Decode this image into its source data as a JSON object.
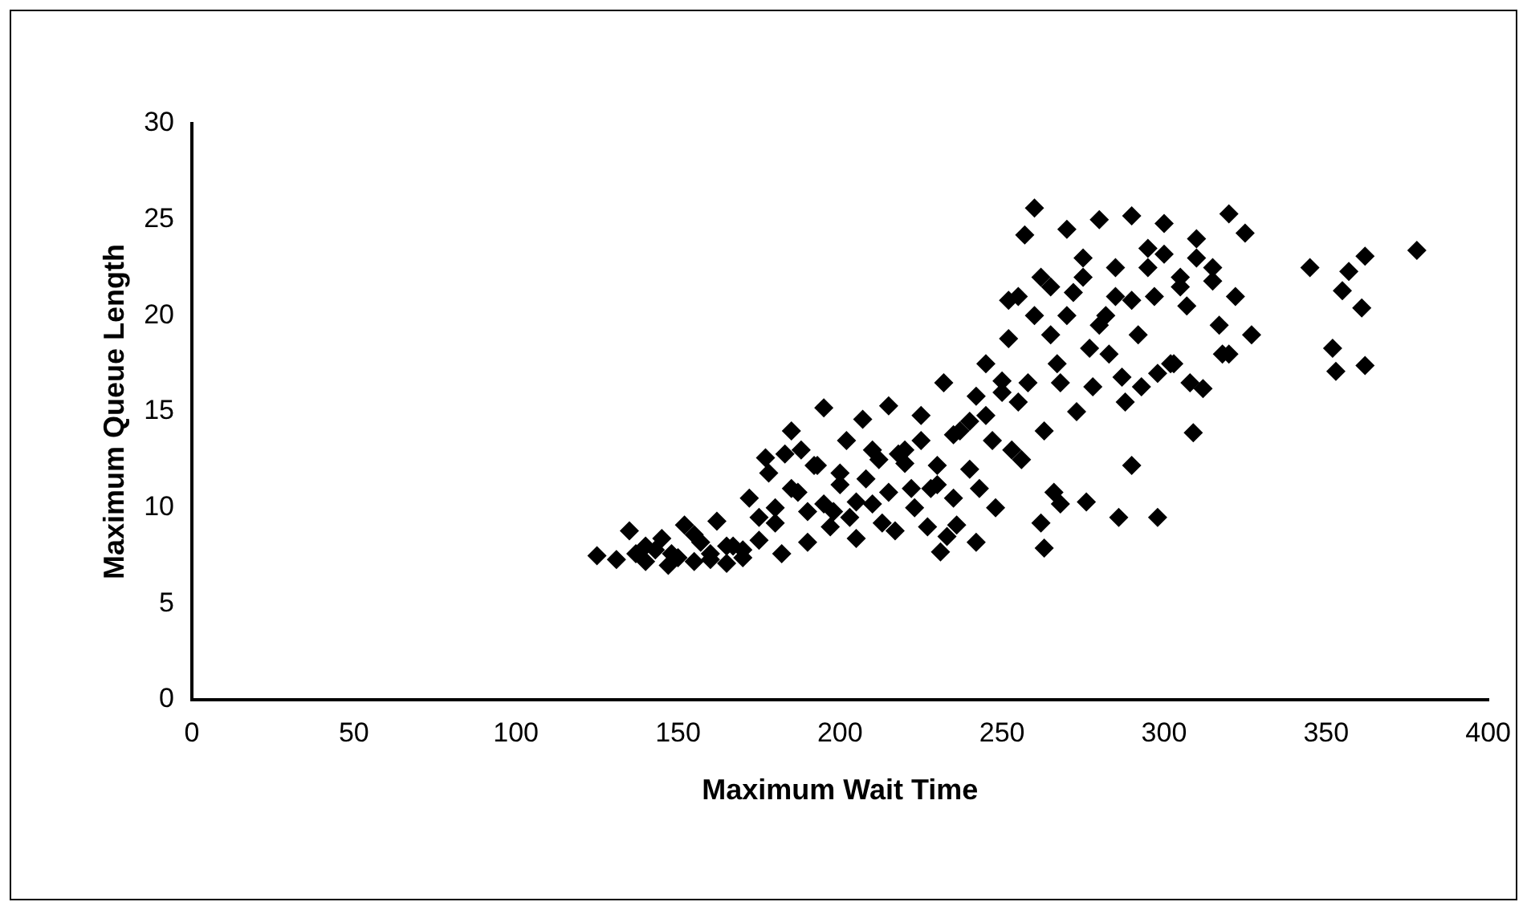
{
  "chart_data": {
    "type": "scatter",
    "xlabel": "Maximum Wait Time",
    "ylabel": "Maximum Queue Length",
    "xlim": [
      0,
      400
    ],
    "ylim": [
      0,
      30
    ],
    "xticks": [
      0,
      50,
      100,
      150,
      200,
      250,
      300,
      350,
      400
    ],
    "yticks": [
      0,
      5,
      10,
      15,
      20,
      25,
      30
    ],
    "marker": "diamond",
    "grid": false,
    "legend": false,
    "series": [
      {
        "color": "#000000",
        "x": [
          125,
          131,
          135,
          137,
          140,
          143,
          145,
          147,
          150,
          152,
          155,
          157,
          160,
          162,
          165,
          167,
          170,
          172,
          175,
          177,
          180,
          182,
          185,
          187,
          190,
          192,
          195,
          197,
          200,
          202,
          205,
          207,
          210,
          212,
          215,
          217,
          220,
          222,
          225,
          227,
          230,
          232,
          235,
          237,
          240,
          242,
          245,
          247,
          250,
          252,
          255,
          257,
          260,
          262,
          265,
          267,
          270,
          272,
          275,
          277,
          280,
          282,
          285,
          287,
          290,
          292,
          295,
          297,
          300,
          302,
          305,
          307,
          310,
          312,
          315,
          317,
          320,
          322,
          325,
          327,
          140,
          148,
          155,
          160,
          165,
          170,
          175,
          180,
          185,
          190,
          195,
          200,
          205,
          210,
          215,
          220,
          225,
          230,
          235,
          240,
          245,
          250,
          255,
          260,
          265,
          270,
          275,
          280,
          285,
          290,
          295,
          300,
          305,
          310,
          315,
          178,
          183,
          188,
          193,
          198,
          203,
          208,
          213,
          218,
          223,
          228,
          233,
          243,
          248,
          253,
          258,
          263,
          268,
          273,
          278,
          283,
          288,
          293,
          298,
          303,
          308,
          318,
          345,
          352,
          355,
          353,
          357,
          362,
          361,
          362,
          378,
          286,
          298,
          263,
          262,
          266,
          268,
          276,
          290,
          309,
          231,
          236,
          242,
          256,
          252,
          320
        ],
        "values": [
          7.5,
          7.3,
          8.8,
          7.6,
          7.2,
          7.8,
          8.4,
          7.0,
          7.4,
          9.1,
          7.2,
          8.2,
          7.6,
          9.3,
          7.1,
          8.0,
          7.4,
          10.5,
          8.3,
          12.6,
          9.2,
          7.6,
          14.0,
          10.8,
          8.2,
          12.2,
          15.2,
          9.0,
          11.2,
          13.5,
          8.4,
          14.6,
          10.2,
          12.5,
          15.3,
          8.8,
          13.0,
          11.0,
          14.8,
          9.0,
          12.2,
          16.5,
          10.5,
          14.0,
          12.0,
          15.8,
          17.5,
          13.5,
          16.0,
          18.8,
          21.0,
          24.2,
          25.6,
          22.0,
          19.0,
          17.5,
          24.5,
          21.2,
          23.0,
          18.3,
          25.0,
          20.0,
          22.5,
          16.8,
          25.2,
          19.0,
          23.5,
          21.0,
          24.8,
          17.5,
          22.0,
          20.5,
          24.0,
          16.2,
          22.5,
          19.5,
          25.3,
          21.0,
          24.3,
          19.0,
          8.0,
          7.6,
          8.6,
          7.3,
          8.0,
          7.8,
          9.5,
          10.0,
          11.0,
          9.8,
          10.2,
          11.8,
          10.3,
          13.0,
          10.8,
          12.3,
          13.5,
          11.2,
          13.8,
          14.5,
          14.8,
          16.6,
          15.5,
          20.0,
          21.5,
          20.0,
          22.0,
          19.5,
          21.0,
          20.8,
          22.5,
          23.2,
          21.5,
          23.0,
          21.8,
          11.8,
          12.8,
          13.0,
          12.2,
          9.8,
          9.5,
          11.5,
          9.2,
          12.8,
          10.0,
          11.0,
          8.5,
          11.0,
          10.0,
          13.0,
          16.5,
          14.0,
          16.5,
          15.0,
          16.3,
          18.0,
          15.5,
          16.3,
          17.0,
          17.5,
          16.5,
          18.0,
          22.5,
          18.3,
          21.3,
          17.1,
          22.3,
          23.1,
          20.4,
          17.4,
          23.4,
          9.5,
          9.5,
          7.9,
          9.2,
          10.8,
          10.2,
          10.3,
          12.2,
          13.9,
          7.7,
          9.1,
          8.2,
          12.5,
          20.8,
          18.0
        ]
      }
    ]
  }
}
